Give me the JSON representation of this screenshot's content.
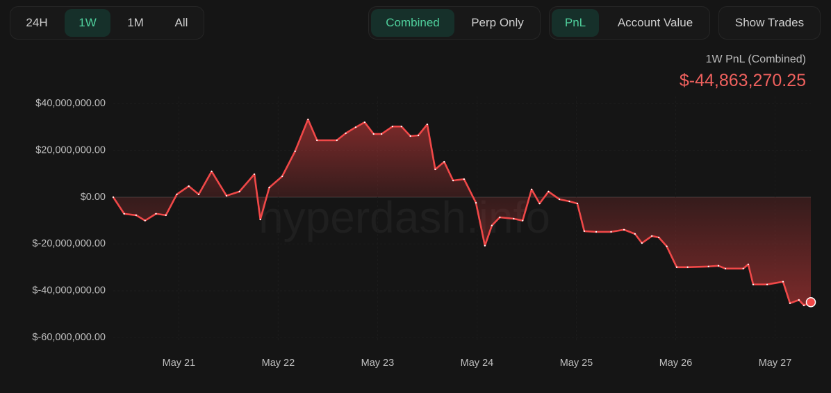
{
  "toolbar": {
    "timeframes": [
      "24H",
      "1W",
      "1M",
      "All"
    ],
    "views": [
      "Combined",
      "Perp Only"
    ],
    "metrics": [
      "PnL",
      "Account Value"
    ],
    "show_trades": "Show Trades"
  },
  "summary": {
    "label": "1W PnL (Combined)",
    "value": "$-44,863,270.25"
  },
  "chart_data": {
    "type": "line",
    "watermark": "hyperdash.info",
    "color": "#f04848",
    "x": [
      20.34,
      20.45,
      20.57,
      20.66,
      20.77,
      20.87,
      20.98,
      21.1,
      21.2,
      21.33,
      21.48,
      21.61,
      21.76,
      21.82,
      21.91,
      22.04,
      22.17,
      22.3,
      22.39,
      22.59,
      22.68,
      22.78,
      22.87,
      22.96,
      23.04,
      23.15,
      23.24,
      23.33,
      23.41,
      23.5,
      23.58,
      23.67,
      23.76,
      23.87,
      23.99,
      24.08,
      24.15,
      24.23,
      24.37,
      24.46,
      24.55,
      24.63,
      24.72,
      24.83,
      24.93,
      25.01,
      25.08,
      25.2,
      25.35,
      25.48,
      25.59,
      25.66,
      25.76,
      25.83,
      25.91,
      26.01,
      26.12,
      26.33,
      26.43,
      26.5,
      26.68,
      26.73,
      26.78,
      26.92,
      27.08,
      27.15,
      27.24,
      27.29,
      27.36
    ],
    "series": [
      {
        "name": "PnL",
        "color": "#f04848",
        "values": [
          0,
          -7100000,
          -7700000,
          -10000000,
          -7100000,
          -7700000,
          1200000,
          4700000,
          1200000,
          11000000,
          600000,
          2400000,
          9800000,
          -9500000,
          4100000,
          8900000,
          19600000,
          33200000,
          24300000,
          24300000,
          27300000,
          29900000,
          32000000,
          27000000,
          27000000,
          30200000,
          30200000,
          26100000,
          26400000,
          31100000,
          11900000,
          15100000,
          7100000,
          7700000,
          -2400000,
          -20700000,
          -12100000,
          -8600000,
          -9200000,
          -10000000,
          3300000,
          -2700000,
          2400000,
          -900000,
          -1800000,
          -2700000,
          -14500000,
          -14800000,
          -14800000,
          -13900000,
          -15700000,
          -19600000,
          -16600000,
          -17200000,
          -21000000,
          -29900000,
          -29900000,
          -29600000,
          -29300000,
          -30500000,
          -30500000,
          -28700000,
          -37300000,
          -37300000,
          -36100000,
          -45300000,
          -43900000,
          -46200000,
          -44863270.25
        ]
      }
    ],
    "xlim": [
      20.34,
      27.36
    ],
    "xticks": [
      {
        "value": 21,
        "label": "May 21"
      },
      {
        "value": 22,
        "label": "May 22"
      },
      {
        "value": 23,
        "label": "May 23"
      },
      {
        "value": 24,
        "label": "May 24"
      },
      {
        "value": 25,
        "label": "May 25"
      },
      {
        "value": 26,
        "label": "May 26"
      },
      {
        "value": 27,
        "label": "May 27"
      }
    ],
    "ylim": [
      -62000000,
      43000000
    ],
    "yticks": [
      {
        "value": 40000000,
        "label": "$40,000,000.00"
      },
      {
        "value": 20000000,
        "label": "$20,000,000.00"
      },
      {
        "value": 0,
        "label": "$0.00"
      },
      {
        "value": -20000000,
        "label": "$-20,000,000.00"
      },
      {
        "value": -40000000,
        "label": "$-40,000,000.00"
      },
      {
        "value": -60000000,
        "label": "$-60,000,000.00"
      }
    ]
  }
}
